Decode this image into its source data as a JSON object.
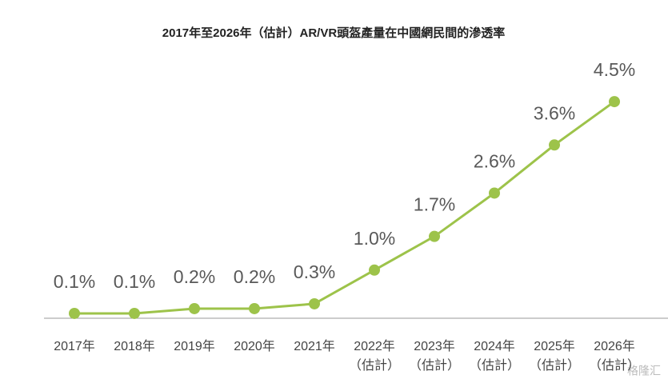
{
  "chart_data": {
    "type": "line",
    "title": "2017年至2026年（估計）AR/VR頭盔產量在中國網民間的滲透率",
    "categories": [
      "2017年",
      "2018年",
      "2019年",
      "2020年",
      "2021年",
      "2022年\n（估計）",
      "2023年\n（估計）",
      "2024年\n（估計）",
      "2025年\n（估計）",
      "2026年\n（估計）"
    ],
    "values": [
      0.1,
      0.1,
      0.2,
      0.2,
      0.3,
      1.0,
      1.7,
      2.6,
      3.6,
      4.5
    ],
    "value_labels": [
      "0.1%",
      "0.1%",
      "0.2%",
      "0.2%",
      "0.3%",
      "1.0%",
      "1.7%",
      "2.6%",
      "3.6%",
      "4.5%"
    ],
    "color": "#9dc34a",
    "ylim": [
      0,
      5
    ],
    "grid": false,
    "watermark": "格隆汇"
  }
}
